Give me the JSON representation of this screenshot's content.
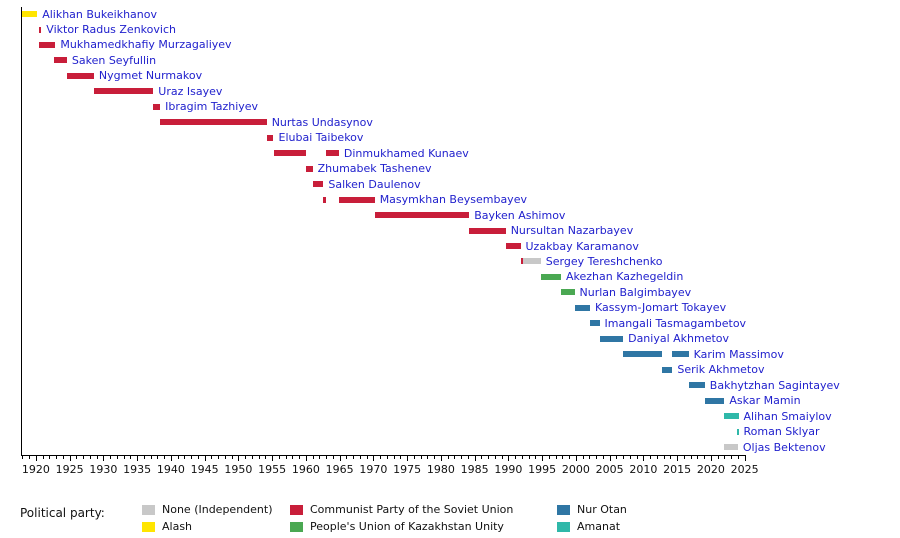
{
  "chart_data": {
    "type": "timeline",
    "x_axis": {
      "domain": [
        1917.8,
        2025.1
      ],
      "tick_start": 1920,
      "tick_end": 2025,
      "major_step": 5,
      "minor_step": 1,
      "tick_labels": [
        "1920",
        "1925",
        "1930",
        "1935",
        "1940",
        "1945",
        "1950",
        "1955",
        "1960",
        "1965",
        "1970",
        "1975",
        "1980",
        "1985",
        "1990",
        "1995",
        "2000",
        "2005",
        "2010",
        "2015",
        "2020",
        "2025"
      ]
    },
    "label_color": "#2121cd",
    "axis_color": "#000000",
    "legend": {
      "label": "Political party:",
      "columns": [
        [
          "none",
          "alash"
        ],
        [
          "cpsu",
          "pukz"
        ],
        [
          "nur_otan",
          "amanat"
        ]
      ]
    },
    "parties": {
      "none": {
        "label": "None (Independent)",
        "color": "#c8c8c8"
      },
      "alash": {
        "label": "Alash",
        "color": "#ffe500"
      },
      "cpsu": {
        "label": "Communist Party of the Soviet Union",
        "color": "#c81e3a"
      },
      "pukz": {
        "label": "People's Union of Kazakhstan Unity",
        "color": "#4aa852"
      },
      "nur_otan": {
        "label": "Nur Otan",
        "color": "#2f76a4"
      },
      "amanat": {
        "label": "Amanat",
        "color": "#2fb8a9"
      }
    },
    "people": [
      {
        "name": "Alikhan Bukeikhanov",
        "segments": [
          {
            "party": "alash",
            "start": 1917.9,
            "end": 1920.2
          }
        ]
      },
      {
        "name": "Viktor Radus Zenkovich",
        "segments": [
          {
            "party": "cpsu",
            "start": 1920.4,
            "end": 1920.8
          }
        ]
      },
      {
        "name": "Mukhamedkhafiy Murzagaliyev",
        "segments": [
          {
            "party": "cpsu",
            "start": 1920.5,
            "end": 1922.9
          }
        ]
      },
      {
        "name": "Saken Seyfullin",
        "segments": [
          {
            "party": "cpsu",
            "start": 1922.7,
            "end": 1924.6
          }
        ]
      },
      {
        "name": "Nygmet Nurmakov",
        "segments": [
          {
            "party": "cpsu",
            "start": 1924.6,
            "end": 1928.6
          }
        ]
      },
      {
        "name": "Uraz Isayev",
        "segments": [
          {
            "party": "cpsu",
            "start": 1928.6,
            "end": 1937.4
          }
        ]
      },
      {
        "name": "Ibragim Tazhiyev",
        "segments": [
          {
            "party": "cpsu",
            "start": 1937.4,
            "end": 1938.4
          }
        ]
      },
      {
        "name": "Nurtas Undasynov",
        "segments": [
          {
            "party": "cpsu",
            "start": 1938.4,
            "end": 1954.2
          }
        ]
      },
      {
        "name": "Elubai Taibekov",
        "segments": [
          {
            "party": "cpsu",
            "start": 1954.2,
            "end": 1955.2
          }
        ]
      },
      {
        "name": "Dinmukhamed Kunaev",
        "segments": [
          {
            "party": "cpsu",
            "start": 1955.2,
            "end": 1960.0
          },
          {
            "party": "cpsu",
            "start": 1963.0,
            "end": 1964.9
          }
        ]
      },
      {
        "name": "Zhumabek Tashenev",
        "segments": [
          {
            "party": "cpsu",
            "start": 1960.0,
            "end": 1961.0
          }
        ]
      },
      {
        "name": "Salken Daulenov",
        "segments": [
          {
            "party": "cpsu",
            "start": 1961.0,
            "end": 1962.6
          }
        ]
      },
      {
        "name": "Masymkhan Beysembayev",
        "segments": [
          {
            "party": "cpsu",
            "start": 1962.6,
            "end": 1963.0
          },
          {
            "party": "cpsu",
            "start": 1964.9,
            "end": 1970.2
          }
        ]
      },
      {
        "name": "Bayken Ashimov",
        "segments": [
          {
            "party": "cpsu",
            "start": 1970.2,
            "end": 1984.2
          }
        ]
      },
      {
        "name": "Nursultan Nazarbayev",
        "segments": [
          {
            "party": "cpsu",
            "start": 1984.2,
            "end": 1989.6
          }
        ]
      },
      {
        "name": "Uzakbay Karamanov",
        "segments": [
          {
            "party": "cpsu",
            "start": 1989.6,
            "end": 1991.8
          }
        ]
      },
      {
        "name": "Sergey Tereshchenko",
        "segments": [
          {
            "party": "cpsu",
            "start": 1991.8,
            "end": 1992.2
          },
          {
            "party": "none",
            "start": 1992.2,
            "end": 1994.8
          }
        ]
      },
      {
        "name": "Akezhan Kazhegeldin",
        "segments": [
          {
            "party": "pukz",
            "start": 1994.8,
            "end": 1997.8
          }
        ]
      },
      {
        "name": "Nurlan Balgimbayev",
        "segments": [
          {
            "party": "pukz",
            "start": 1997.8,
            "end": 1999.8
          }
        ]
      },
      {
        "name": "Kassym-Jomart Tokayev",
        "segments": [
          {
            "party": "nur_otan",
            "start": 1999.8,
            "end": 2002.1
          }
        ]
      },
      {
        "name": "Imangali Tasmagambetov",
        "segments": [
          {
            "party": "nur_otan",
            "start": 2002.1,
            "end": 2003.5
          }
        ]
      },
      {
        "name": "Daniyal Akhmetov",
        "segments": [
          {
            "party": "nur_otan",
            "start": 2003.5,
            "end": 2007.0
          }
        ]
      },
      {
        "name": "Karim Massimov",
        "segments": [
          {
            "party": "nur_otan",
            "start": 2007.0,
            "end": 2012.7
          },
          {
            "party": "nur_otan",
            "start": 2014.3,
            "end": 2016.7
          }
        ]
      },
      {
        "name": "Serik Akhmetov",
        "segments": [
          {
            "party": "nur_otan",
            "start": 2012.7,
            "end": 2014.3
          }
        ]
      },
      {
        "name": "Bakhytzhan Sagintayev",
        "segments": [
          {
            "party": "nur_otan",
            "start": 2016.7,
            "end": 2019.1
          }
        ]
      },
      {
        "name": "Askar Mamin",
        "segments": [
          {
            "party": "nur_otan",
            "start": 2019.1,
            "end": 2022.0
          }
        ]
      },
      {
        "name": "Alihan Smaiylov",
        "segments": [
          {
            "party": "amanat",
            "start": 2022.0,
            "end": 2024.1
          }
        ]
      },
      {
        "name": "Roman Sklyar",
        "segments": [
          {
            "party": "amanat",
            "start": 2023.9,
            "end": 2024.1
          }
        ]
      },
      {
        "name": "Oljas Bektenov",
        "segments": [
          {
            "party": "none",
            "start": 2021.9,
            "end": 2024.0
          }
        ]
      }
    ]
  }
}
